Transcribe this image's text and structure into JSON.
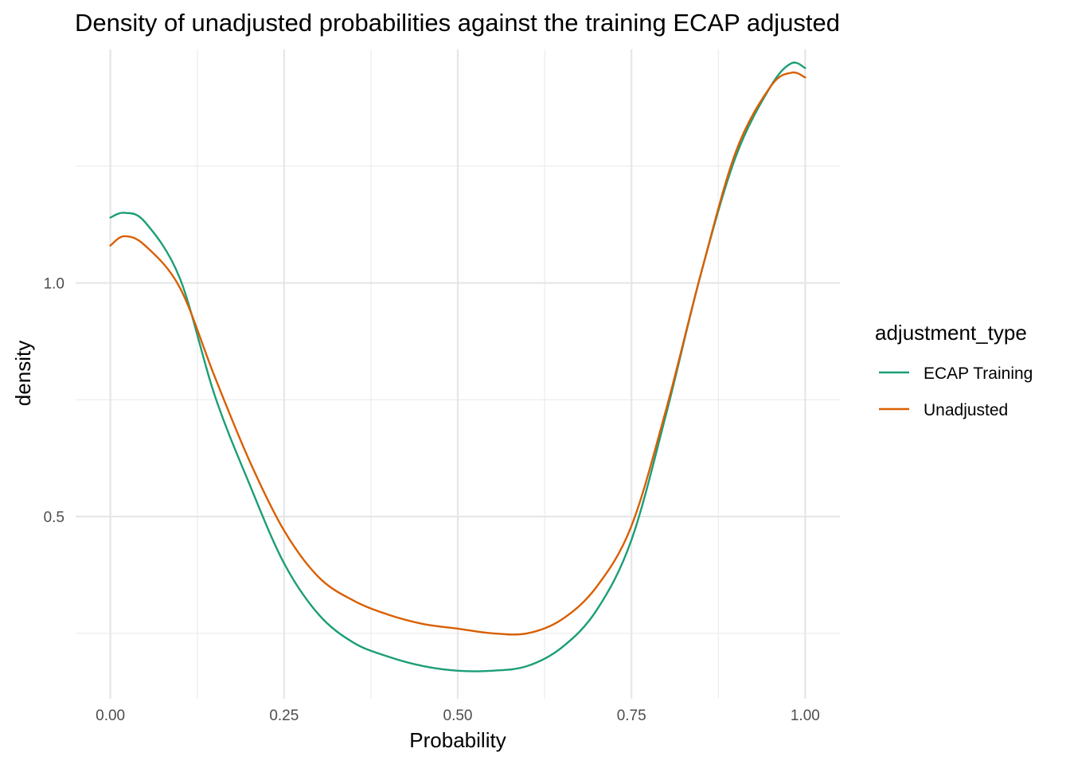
{
  "chart_data": {
    "type": "line",
    "title": "Density of unadjusted probabilities against the training ECAP adjusted",
    "xlabel": "Probability",
    "ylabel": "density",
    "xlim": [
      -0.05,
      1.05
    ],
    "ylim": [
      0.11,
      1.5
    ],
    "x_ticks": [
      0.0,
      0.25,
      0.5,
      0.75,
      1.0
    ],
    "x_tick_labels": [
      "0.00",
      "0.25",
      "0.50",
      "0.75",
      "1.00"
    ],
    "y_ticks": [
      0.5,
      1.0
    ],
    "y_tick_labels": [
      "0.5",
      "1.0"
    ],
    "grid": true,
    "legend": {
      "title": "adjustment_type",
      "position": "right"
    },
    "x": [
      0.0,
      0.02,
      0.05,
      0.1,
      0.15,
      0.2,
      0.25,
      0.3,
      0.35,
      0.4,
      0.45,
      0.5,
      0.55,
      0.6,
      0.65,
      0.7,
      0.75,
      0.8,
      0.85,
      0.9,
      0.95,
      0.98,
      1.0
    ],
    "series": [
      {
        "name": "ECAP Training",
        "color": "#1b9e77",
        "values": [
          1.14,
          1.15,
          1.13,
          1.01,
          0.76,
          0.57,
          0.4,
          0.29,
          0.23,
          0.2,
          0.18,
          0.17,
          0.17,
          0.18,
          0.22,
          0.3,
          0.45,
          0.72,
          1.02,
          1.27,
          1.42,
          1.47,
          1.46
        ]
      },
      {
        "name": "Unadjusted",
        "color": "#d95f02",
        "values": [
          1.08,
          1.1,
          1.08,
          0.99,
          0.8,
          0.62,
          0.47,
          0.37,
          0.32,
          0.29,
          0.27,
          0.26,
          0.25,
          0.25,
          0.28,
          0.35,
          0.48,
          0.73,
          1.02,
          1.28,
          1.42,
          1.45,
          1.44
        ]
      }
    ]
  }
}
